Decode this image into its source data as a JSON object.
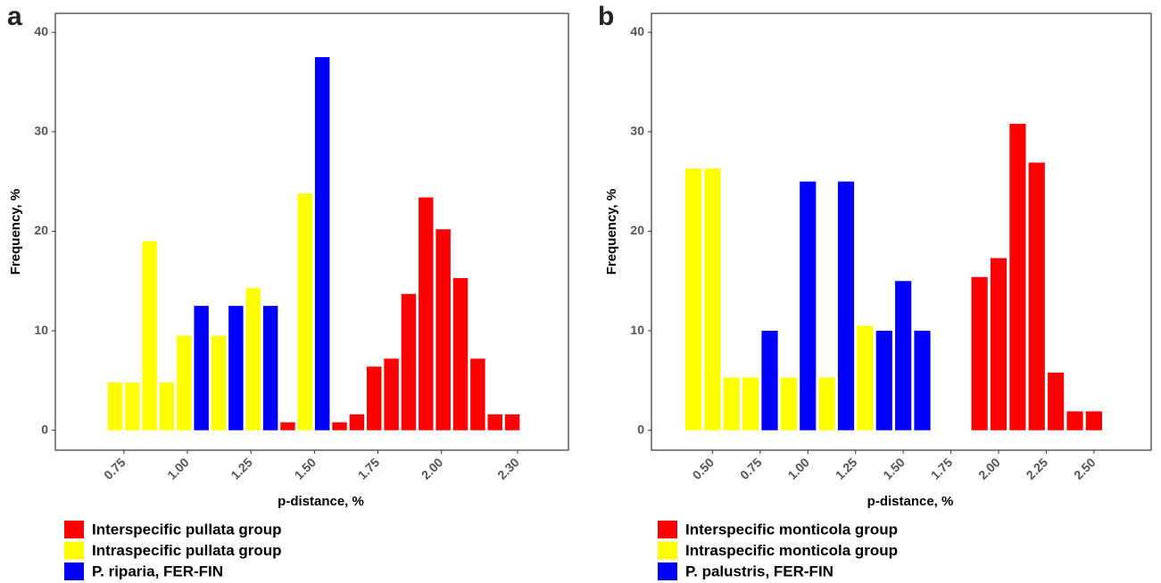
{
  "chart_data": [
    {
      "type": "bar",
      "panel_label": "a",
      "x_label": "p-distance, %",
      "y_label": "Frequency, %",
      "xlim": [
        0.48,
        2.5
      ],
      "xticks": [
        0.75,
        {
          "value": 1,
          "label": "1.00"
        },
        1.25,
        {
          "value": 1.5,
          "label": "1.50"
        },
        1.75,
        {
          "value": 2,
          "label": "2.00"
        },
        {
          "value": 2.3,
          "label": "2.30"
        }
      ],
      "ylim": [
        -2,
        41.9
      ],
      "yticks": [
        0,
        10,
        20,
        30,
        40
      ],
      "series": [
        {
          "name": "Interspecific pullata group",
          "color": "#ff0000",
          "x": [
            1.395,
            1.599,
            1.667,
            1.735,
            1.803,
            1.871,
            1.939,
            2.007,
            2.075,
            2.143,
            2.211,
            2.279
          ],
          "values": [
            0.8,
            0.8,
            1.6,
            6.4,
            7.2,
            13.7,
            23.4,
            20.2,
            15.3,
            7.2,
            1.6,
            1.6
          ]
        },
        {
          "name": "Intraspecific pullata group",
          "color": "#ffff00",
          "x": [
            0.715,
            0.783,
            0.851,
            0.919,
            0.987,
            1.123,
            1.259,
            1.463
          ],
          "values": [
            4.8,
            4.8,
            19,
            4.8,
            9.5,
            9.5,
            14.3,
            23.8
          ]
        },
        {
          "name": "P. riparia, FER-FIN",
          "color": "#0000ff",
          "x": [
            1.055,
            1.191,
            1.327,
            1.531
          ],
          "values": [
            12.5,
            12.5,
            12.5,
            37.5
          ]
        }
      ]
    },
    {
      "type": "bar",
      "panel_label": "b",
      "x_label": "p-distance, %",
      "y_label": "Frequency, %",
      "xlim": [
        0.18,
        2.8
      ],
      "xticks": [
        {
          "value": 0.5,
          "label": "0.50"
        },
        0.75,
        {
          "value": 1,
          "label": "1.00"
        },
        1.25,
        {
          "value": 1.5,
          "label": "1.50"
        },
        1.75,
        {
          "value": 2,
          "label": "2.00"
        },
        2.25,
        {
          "value": 2.5,
          "label": "2.50"
        }
      ],
      "ylim": [
        -2,
        41.9
      ],
      "yticks": [
        0,
        10,
        20,
        30,
        40
      ],
      "series": [
        {
          "name": "Interspecific monticola group",
          "color": "#ff0000",
          "x": [
            1.9,
            2.0,
            2.1,
            2.2,
            2.3,
            2.4,
            2.5
          ],
          "values": [
            15.4,
            17.3,
            30.8,
            26.9,
            5.8,
            1.9,
            1.9
          ]
        },
        {
          "name": "Intraspecific monticola group",
          "color": "#ffff00",
          "x": [
            0.4,
            0.5,
            0.6,
            0.7,
            0.9,
            1.1,
            1.3
          ],
          "values": [
            26.3,
            26.3,
            5.3,
            5.3,
            5.3,
            5.3,
            10.5
          ]
        },
        {
          "name": "P. palustris, FER-FIN",
          "color": "#0000ff",
          "x": [
            0.8,
            1.0,
            1.2,
            1.4,
            1.5,
            1.6
          ],
          "values": [
            10,
            25,
            25,
            10,
            15,
            10
          ]
        }
      ]
    }
  ]
}
